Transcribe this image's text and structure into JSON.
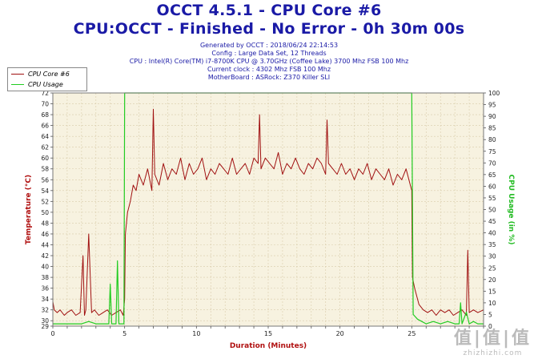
{
  "header": {
    "title_line1": "OCCT 4.5.1 - CPU Core #6",
    "title_line2": "CPU:OCCT - Finished - No Error - 0h 30m 00s",
    "info_lines": [
      "Generated by OCCT : 2018/06/24 22:14:53",
      "Config : Large Data Set, 12 Threads",
      "CPU : Intel(R) Core(TM) i7-8700K CPU @ 3.70GHz (Coffee Lake) 3700 Mhz FSB 100 Mhz",
      "Current clock : 4302 Mhz FSB 100 Mhz",
      "MotherBoard : ASRock: Z370 Killer SLI"
    ]
  },
  "colors": {
    "temperature": "#a01010",
    "usage": "#22cc22",
    "axis_left_label": "#b01010",
    "axis_right_label": "#22bb22",
    "axis_x_label": "#b01010",
    "plot_bg": "#f7f2e0",
    "grid": "#d8ccaa"
  },
  "chart_data": {
    "type": "line",
    "xlabel": "Duration (Minutes)",
    "ylabel_left": "Temperature (°C)",
    "ylabel_right": "CPU Usage (in %)",
    "x_range": [
      0,
      30
    ],
    "y_left_range": [
      29,
      72
    ],
    "y_right_range": [
      0,
      100
    ],
    "x_ticks": [
      0,
      5,
      10,
      15,
      20,
      25
    ],
    "y_left_ticks": [
      29,
      30,
      32,
      34,
      36,
      38,
      40,
      42,
      44,
      46,
      48,
      50,
      52,
      54,
      56,
      58,
      60,
      62,
      64,
      66,
      68,
      70,
      72
    ],
    "y_right_ticks": [
      0,
      5,
      10,
      15,
      20,
      25,
      30,
      35,
      40,
      45,
      50,
      55,
      60,
      65,
      70,
      75,
      80,
      85,
      90,
      95,
      100
    ],
    "grid": true,
    "legend_position": "top-left",
    "series": [
      {
        "name": "CPU Core #6",
        "axis": "left",
        "x": [
          0,
          0.1,
          0.3,
          0.5,
          0.8,
          1.0,
          1.3,
          1.6,
          1.9,
          2.1,
          2.2,
          2.3,
          2.5,
          2.7,
          2.9,
          3.2,
          3.5,
          3.8,
          4.1,
          4.4,
          4.7,
          4.9,
          5.0,
          5.05,
          5.2,
          5.4,
          5.6,
          5.8,
          6.0,
          6.3,
          6.6,
          6.9,
          7.0,
          7.1,
          7.4,
          7.7,
          8.0,
          8.3,
          8.6,
          8.9,
          9.2,
          9.5,
          9.8,
          10.1,
          10.4,
          10.7,
          11.0,
          11.3,
          11.6,
          11.9,
          12.2,
          12.5,
          12.8,
          13.1,
          13.4,
          13.7,
          14.0,
          14.3,
          14.4,
          14.5,
          14.8,
          15.1,
          15.4,
          15.7,
          16.0,
          16.3,
          16.6,
          16.9,
          17.2,
          17.5,
          17.8,
          18.1,
          18.4,
          18.7,
          19.0,
          19.1,
          19.2,
          19.5,
          19.8,
          20.1,
          20.4,
          20.7,
          21.0,
          21.3,
          21.6,
          21.9,
          22.2,
          22.5,
          22.8,
          23.1,
          23.4,
          23.7,
          24.0,
          24.3,
          24.6,
          24.9,
          25.0,
          25.05,
          25.2,
          25.5,
          25.8,
          26.1,
          26.4,
          26.7,
          27.0,
          27.3,
          27.6,
          27.9,
          28.2,
          28.5,
          28.8,
          28.9,
          29.0,
          29.3,
          29.6,
          30.0
        ],
        "values": [
          33.5,
          32,
          31.5,
          32,
          31,
          31.5,
          32,
          31,
          31.5,
          42,
          31,
          32,
          46,
          31.5,
          32,
          31,
          31.5,
          32,
          31,
          31.5,
          32,
          31,
          34,
          46,
          50,
          52,
          55,
          54,
          57,
          55,
          58,
          54,
          69,
          57,
          55,
          59,
          56,
          58,
          57,
          60,
          56,
          59,
          57,
          58,
          60,
          56,
          58,
          57,
          59,
          58,
          57,
          60,
          57,
          58,
          59,
          57,
          60,
          59,
          68,
          58,
          60,
          59,
          58,
          61,
          57,
          59,
          58,
          60,
          58,
          57,
          59,
          58,
          60,
          59,
          57,
          67,
          59,
          58,
          57,
          59,
          57,
          58,
          56,
          58,
          57,
          59,
          56,
          58,
          57,
          56,
          58,
          55,
          57,
          56,
          58,
          55,
          54,
          38,
          36,
          33,
          32,
          31.5,
          32,
          31,
          32,
          31.5,
          32,
          31,
          31.5,
          32,
          31,
          43,
          31.5,
          32,
          31.5,
          32
        ]
      },
      {
        "name": "CPU Usage",
        "axis": "right",
        "x": [
          0,
          0.5,
          1.0,
          1.5,
          2.0,
          2.5,
          3.0,
          3.5,
          3.9,
          4.0,
          4.1,
          4.4,
          4.5,
          4.6,
          4.8,
          4.95,
          5.0,
          5.1,
          24.9,
          25.0,
          25.1,
          25.4,
          25.7,
          26.0,
          26.5,
          27.0,
          27.5,
          28.0,
          28.3,
          28.4,
          28.5,
          28.8,
          29.0,
          29.3,
          29.6,
          30.0
        ],
        "values": [
          1,
          1,
          1,
          1,
          1,
          2,
          1,
          1,
          1,
          18,
          1,
          1,
          28,
          1,
          1,
          1,
          100,
          100,
          100,
          100,
          5,
          3,
          2,
          1,
          2,
          1,
          2,
          1,
          1,
          10,
          1,
          6,
          1,
          2,
          1,
          1
        ]
      }
    ]
  },
  "watermark": {
    "logo": "值|值|值",
    "url": "zhizhizhi.com"
  }
}
